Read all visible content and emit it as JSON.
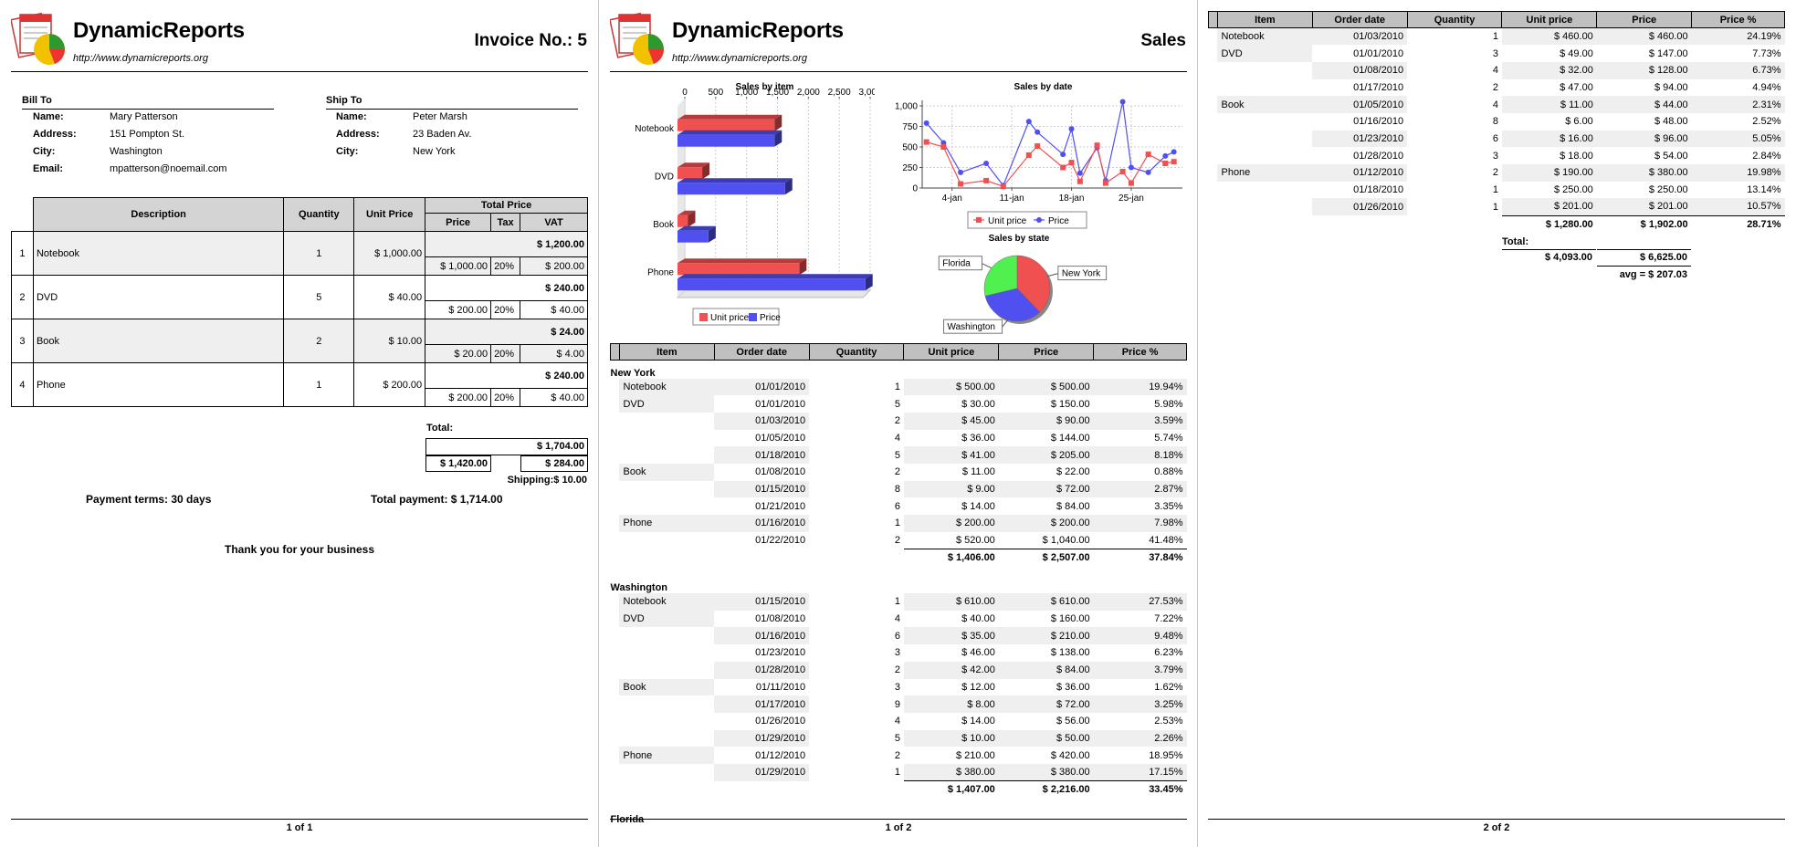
{
  "brand": {
    "name": "DynamicReports",
    "url": "http://www.dynamicreports.org"
  },
  "invoice": {
    "title": "Invoice No.: 5",
    "bill_to": {
      "heading": "Bill To",
      "fields": [
        {
          "label": "Name:",
          "value": "Mary Patterson"
        },
        {
          "label": "Address:",
          "value": "151 Pompton St."
        },
        {
          "label": "City:",
          "value": "Washington"
        },
        {
          "label": "Email:",
          "value": "mpatterson@noemail.com"
        }
      ]
    },
    "ship_to": {
      "heading": "Ship To",
      "fields": [
        {
          "label": "Name:",
          "value": "Peter Marsh"
        },
        {
          "label": "Address:",
          "value": "23 Baden Av."
        },
        {
          "label": "City:",
          "value": "New York"
        }
      ]
    },
    "columns": {
      "description": "Description",
      "quantity": "Quantity",
      "unit_price": "Unit Price",
      "total_price": "Total Price",
      "price": "Price",
      "tax": "Tax",
      "vat": "VAT"
    },
    "rows": [
      {
        "no": "1",
        "desc": "Notebook",
        "qty": "1",
        "unit": "$ 1,000.00",
        "total": "$ 1,200.00",
        "price": "$ 1,000.00",
        "tax": "20%",
        "vat": "$ 200.00"
      },
      {
        "no": "2",
        "desc": "DVD",
        "qty": "5",
        "unit": "$ 40.00",
        "total": "$ 240.00",
        "price": "$ 200.00",
        "tax": "20%",
        "vat": "$ 40.00"
      },
      {
        "no": "3",
        "desc": "Book",
        "qty": "2",
        "unit": "$ 10.00",
        "total": "$ 24.00",
        "price": "$ 20.00",
        "tax": "20%",
        "vat": "$ 4.00"
      },
      {
        "no": "4",
        "desc": "Phone",
        "qty": "1",
        "unit": "$ 200.00",
        "total": "$ 240.00",
        "price": "$ 200.00",
        "tax": "20%",
        "vat": "$ 40.00"
      }
    ],
    "total_label": "Total:",
    "total_value": "$ 1,704.00",
    "total_price": "$ 1,420.00",
    "total_vat": "$ 284.00",
    "shipping": "Shipping:$ 10.00",
    "payment_terms": "Payment terms: 30 days",
    "total_payment": "Total payment: $ 1,714.00",
    "thanks": "Thank you for your business",
    "footer": "1 of 1"
  },
  "sales": {
    "title": "Sales",
    "columns": [
      "Item",
      "Order date",
      "Quantity",
      "Unit price",
      "Price",
      "Price %"
    ],
    "groups": [
      {
        "state": "New York",
        "rows": [
          [
            "Notebook",
            "01/01/2010",
            "1",
            "$ 500.00",
            "$ 500.00",
            "19.94%"
          ],
          [
            "DVD",
            "01/01/2010",
            "5",
            "$ 30.00",
            "$ 150.00",
            "5.98%"
          ],
          [
            "",
            "01/03/2010",
            "2",
            "$ 45.00",
            "$ 90.00",
            "3.59%"
          ],
          [
            "",
            "01/05/2010",
            "4",
            "$ 36.00",
            "$ 144.00",
            "5.74%"
          ],
          [
            "",
            "01/18/2010",
            "5",
            "$ 41.00",
            "$ 205.00",
            "8.18%"
          ],
          [
            "Book",
            "01/08/2010",
            "2",
            "$ 11.00",
            "$ 22.00",
            "0.88%"
          ],
          [
            "",
            "01/15/2010",
            "8",
            "$ 9.00",
            "$ 72.00",
            "2.87%"
          ],
          [
            "",
            "01/21/2010",
            "6",
            "$ 14.00",
            "$ 84.00",
            "3.35%"
          ],
          [
            "Phone",
            "01/16/2010",
            "1",
            "$ 200.00",
            "$ 200.00",
            "7.98%"
          ],
          [
            "",
            "01/22/2010",
            "2",
            "$ 520.00",
            "$ 1,040.00",
            "41.48%"
          ]
        ],
        "subtotal": [
          "$ 1,406.00",
          "$ 2,507.00",
          "37.84%"
        ]
      },
      {
        "state": "Washington",
        "rows": [
          [
            "Notebook",
            "01/15/2010",
            "1",
            "$ 610.00",
            "$ 610.00",
            "27.53%"
          ],
          [
            "DVD",
            "01/08/2010",
            "4",
            "$ 40.00",
            "$ 160.00",
            "7.22%"
          ],
          [
            "",
            "01/16/2010",
            "6",
            "$ 35.00",
            "$ 210.00",
            "9.48%"
          ],
          [
            "",
            "01/23/2010",
            "3",
            "$ 46.00",
            "$ 138.00",
            "6.23%"
          ],
          [
            "",
            "01/28/2010",
            "2",
            "$ 42.00",
            "$ 84.00",
            "3.79%"
          ],
          [
            "Book",
            "01/11/2010",
            "3",
            "$ 12.00",
            "$ 36.00",
            "1.62%"
          ],
          [
            "",
            "01/17/2010",
            "9",
            "$ 8.00",
            "$ 72.00",
            "3.25%"
          ],
          [
            "",
            "01/26/2010",
            "4",
            "$ 14.00",
            "$ 56.00",
            "2.53%"
          ],
          [
            "",
            "01/29/2010",
            "5",
            "$ 10.00",
            "$ 50.00",
            "2.26%"
          ],
          [
            "Phone",
            "01/12/2010",
            "2",
            "$ 210.00",
            "$ 420.00",
            "18.95%"
          ],
          [
            "",
            "01/29/2010",
            "1",
            "$ 380.00",
            "$ 380.00",
            "17.15%"
          ]
        ],
        "subtotal": [
          "$ 1,407.00",
          "$ 2,216.00",
          "33.45%"
        ]
      },
      {
        "state": "Florida"
      }
    ],
    "footer": "1 of 2"
  },
  "sales_page2": {
    "rows": [
      [
        "Notebook",
        "01/03/2010",
        "1",
        "$ 460.00",
        "$ 460.00",
        "24.19%"
      ],
      [
        "DVD",
        "01/01/2010",
        "3",
        "$ 49.00",
        "$ 147.00",
        "7.73%"
      ],
      [
        "",
        "01/08/2010",
        "4",
        "$ 32.00",
        "$ 128.00",
        "6.73%"
      ],
      [
        "",
        "01/17/2010",
        "2",
        "$ 47.00",
        "$ 94.00",
        "4.94%"
      ],
      [
        "Book",
        "01/05/2010",
        "4",
        "$ 11.00",
        "$ 44.00",
        "2.31%"
      ],
      [
        "",
        "01/16/2010",
        "8",
        "$ 6.00",
        "$ 48.00",
        "2.52%"
      ],
      [
        "",
        "01/23/2010",
        "6",
        "$ 16.00",
        "$ 96.00",
        "5.05%"
      ],
      [
        "",
        "01/28/2010",
        "3",
        "$ 18.00",
        "$ 54.00",
        "2.84%"
      ],
      [
        "Phone",
        "01/12/2010",
        "2",
        "$ 190.00",
        "$ 380.00",
        "19.98%"
      ],
      [
        "",
        "01/18/2010",
        "1",
        "$ 250.00",
        "$ 250.00",
        "13.14%"
      ],
      [
        "",
        "01/26/2010",
        "1",
        "$ 201.00",
        "$ 201.00",
        "10.57%"
      ]
    ],
    "subtotal": [
      "$ 1,280.00",
      "$ 1,902.00",
      "28.71%"
    ],
    "total_label": "Total:",
    "total_unit": "$ 4,093.00",
    "total_price": "$ 6,625.00",
    "avg": "avg = $ 207.03",
    "footer": "2 of 2"
  },
  "colors": {
    "unit_price": "#f05050",
    "price": "#5050f0",
    "florida": "#50f050"
  },
  "chart_data": [
    {
      "type": "bar",
      "title": "Sales by item",
      "categories": [
        "Notebook",
        "DVD",
        "Book",
        "Phone"
      ],
      "series": [
        {
          "name": "Unit price",
          "values": [
            1570,
            400,
            170,
            1970
          ]
        },
        {
          "name": "Price",
          "values": [
            1570,
            1740,
            500,
            3040
          ]
        }
      ],
      "xlim": [
        0,
        3000
      ],
      "ticks": [
        "0",
        "500",
        "1,000",
        "1,500",
        "2,000",
        "2,500",
        "3,000"
      ],
      "legend": "bottom"
    },
    {
      "type": "line",
      "title": "Sales by date",
      "xticks": [
        "4-jan",
        "11-jan",
        "18-jan",
        "25-jan"
      ],
      "x": [
        1,
        3,
        5,
        8,
        10,
        13,
        14,
        17,
        18,
        19,
        21,
        22,
        24,
        25,
        27,
        29,
        30
      ],
      "series": [
        {
          "name": "Unit price",
          "values": [
            560,
            500,
            50,
            90,
            20,
            400,
            510,
            250,
            310,
            80,
            520,
            60,
            200,
            60,
            410,
            300,
            320
          ]
        },
        {
          "name": "Price",
          "values": [
            790,
            550,
            190,
            300,
            30,
            810,
            680,
            410,
            720,
            180,
            490,
            90,
            1050,
            250,
            190,
            390,
            440
          ]
        }
      ],
      "ylim": [
        0,
        1000
      ],
      "yticks": [
        "0",
        "250",
        "500",
        "750",
        "1,000"
      ],
      "legend": "bottom"
    },
    {
      "type": "pie",
      "title": "Sales by state",
      "slices": [
        {
          "name": "New York",
          "value": 2507
        },
        {
          "name": "Washington",
          "value": 2216
        },
        {
          "name": "Florida",
          "value": 1902
        }
      ]
    }
  ]
}
